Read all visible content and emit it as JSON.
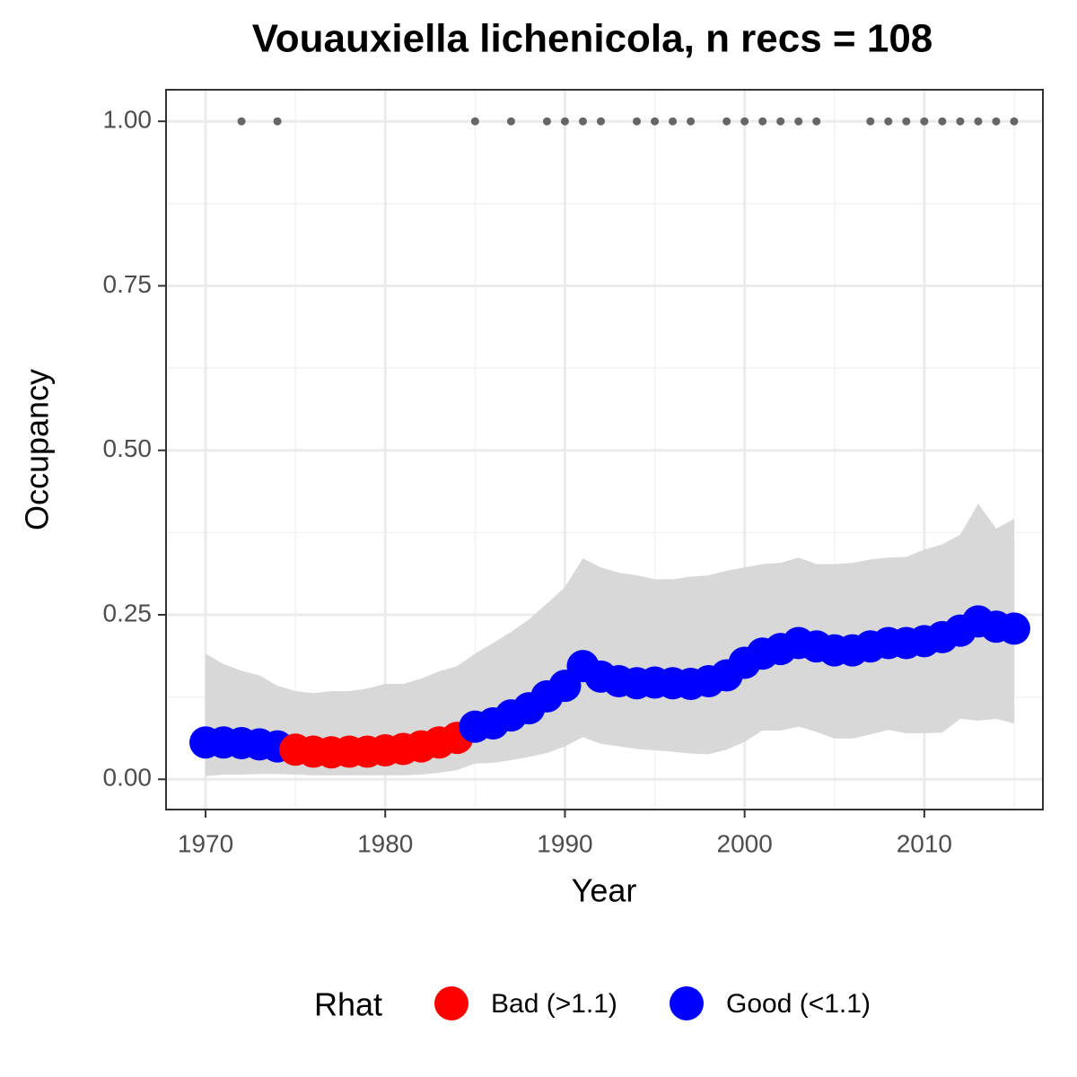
{
  "chart_data": {
    "type": "line",
    "title": "Vouauxiella lichenicola, n recs = 108",
    "x_label": "Year",
    "y_label": "Occupancy",
    "x": [
      1970,
      1971,
      1972,
      1973,
      1974,
      1975,
      1976,
      1977,
      1978,
      1979,
      1980,
      1981,
      1982,
      1983,
      1984,
      1985,
      1986,
      1987,
      1988,
      1989,
      1990,
      1991,
      1992,
      1993,
      1994,
      1995,
      1996,
      1997,
      1998,
      1999,
      2000,
      2001,
      2002,
      2003,
      2004,
      2005,
      2006,
      2007,
      2008,
      2009,
      2010,
      2011,
      2012,
      2013,
      2014,
      2015
    ],
    "series": [
      {
        "name": "Occupancy",
        "values": [
          0.056,
          0.056,
          0.055,
          0.053,
          0.05,
          0.045,
          0.042,
          0.041,
          0.042,
          0.042,
          0.044,
          0.046,
          0.05,
          0.056,
          0.063,
          0.08,
          0.085,
          0.097,
          0.108,
          0.126,
          0.142,
          0.172,
          0.156,
          0.149,
          0.146,
          0.147,
          0.146,
          0.145,
          0.149,
          0.158,
          0.177,
          0.191,
          0.198,
          0.207,
          0.202,
          0.196,
          0.196,
          0.202,
          0.207,
          0.207,
          0.21,
          0.216,
          0.226,
          0.24,
          0.232,
          0.229
        ],
        "rhat_group": [
          1,
          1,
          1,
          1,
          1,
          0,
          0,
          0,
          0,
          0,
          0,
          0,
          0,
          0,
          0,
          1,
          1,
          1,
          1,
          1,
          1,
          1,
          1,
          1,
          1,
          1,
          1,
          1,
          1,
          1,
          1,
          1,
          1,
          1,
          1,
          1,
          1,
          1,
          1,
          1,
          1,
          1,
          1,
          1,
          1,
          1
        ]
      }
    ],
    "band": {
      "color": "#d6d6d6",
      "upper": [
        0.191,
        0.175,
        0.165,
        0.158,
        0.142,
        0.134,
        0.131,
        0.134,
        0.134,
        0.138,
        0.145,
        0.145,
        0.153,
        0.164,
        0.172,
        0.191,
        0.207,
        0.224,
        0.243,
        0.267,
        0.292,
        0.336,
        0.322,
        0.314,
        0.31,
        0.304,
        0.304,
        0.308,
        0.31,
        0.317,
        0.322,
        0.327,
        0.329,
        0.337,
        0.327,
        0.327,
        0.329,
        0.334,
        0.337,
        0.338,
        0.349,
        0.357,
        0.372,
        0.419,
        0.381,
        0.396
      ],
      "lower": [
        0.005,
        0.007,
        0.007,
        0.008,
        0.008,
        0.007,
        0.006,
        0.006,
        0.006,
        0.006,
        0.006,
        0.006,
        0.007,
        0.01,
        0.014,
        0.024,
        0.025,
        0.029,
        0.034,
        0.04,
        0.05,
        0.064,
        0.054,
        0.05,
        0.046,
        0.044,
        0.042,
        0.039,
        0.038,
        0.045,
        0.057,
        0.074,
        0.074,
        0.08,
        0.072,
        0.062,
        0.062,
        0.068,
        0.075,
        0.07,
        0.07,
        0.071,
        0.092,
        0.089,
        0.092,
        0.085
      ]
    },
    "records": {
      "color": "#666666",
      "x": [
        1972,
        1974,
        1985,
        1987,
        1989,
        1990,
        1991,
        1992,
        1994,
        1995,
        1996,
        1997,
        1999,
        2000,
        2001,
        2002,
        2003,
        2004,
        2007,
        2008,
        2009,
        2010,
        2011,
        2012,
        2013,
        2014,
        2015
      ],
      "values": [
        1,
        1,
        1,
        1,
        1,
        1,
        1,
        1,
        1,
        1,
        1,
        1,
        1,
        1,
        1,
        1,
        1,
        1,
        1,
        1,
        1,
        1,
        1,
        1,
        1,
        1,
        1
      ]
    },
    "legend": {
      "title": "Rhat",
      "position": "bottom",
      "items": [
        {
          "name": "Bad (>1.1)",
          "color": "#ff0000"
        },
        {
          "name": "Good (<1.1)",
          "color": "#0000ff"
        }
      ]
    },
    "xlim": [
      1967.8,
      2016.6
    ],
    "ylim": [
      -0.046,
      1.048
    ],
    "xticks": [
      1970,
      1980,
      1990,
      2000,
      2010
    ],
    "yticks": [
      {
        "value": 0,
        "label": "0.00"
      },
      {
        "value": 0.25,
        "label": "0.25"
      },
      {
        "value": 0.5,
        "label": "0.50"
      },
      {
        "value": 0.75,
        "label": "0.75"
      },
      {
        "value": 1,
        "label": "1.00"
      }
    ],
    "grid": true,
    "minor_grid": true
  }
}
